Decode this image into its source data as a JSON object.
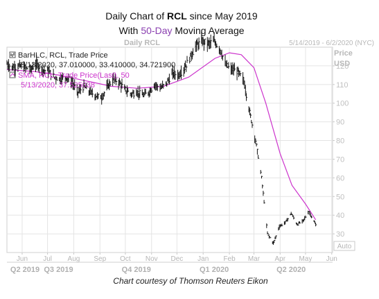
{
  "header": {
    "title_prefix": "Daily Chart of ",
    "title_symbol": "RCL",
    "title_suffix": " since May 2019",
    "subtitle_prefix": "With ",
    "subtitle_accent": "50-Day",
    "subtitle_suffix": " Moving Average",
    "panel_label": "Daily RCL",
    "date_range": "5/14/2019 - 6/2/2020 (NYC)"
  },
  "legend": {
    "bar_line1": "BarHLC, RCL, Trade Price",
    "bar_line2": "5/13/2020, 37.010000, 33.410000, 34.721900",
    "ma_line1": "SMA, RCL, Trade Price(Last),  50",
    "ma_line2": "5/13/2020, 37.525038"
  },
  "axis": {
    "price_label": "Price",
    "unit_label": "USD",
    "auto_label": "Auto"
  },
  "credit": "Chart courtesy of Thomson Reuters Eikon",
  "colors": {
    "bars": "#111111",
    "moving_average": "#cc33cc",
    "grid": "#e4e4e4"
  },
  "chart_data": {
    "type": "line",
    "title": "Daily Chart of RCL since May 2019",
    "subtitle": "With 50-Day Moving Average",
    "ylabel": "Price USD",
    "ylim": [
      20,
      130
    ],
    "y_ticks": [
      30,
      40,
      50,
      60,
      70,
      80,
      90,
      100,
      110,
      120
    ],
    "xlim": [
      "2019-05-14",
      "2020-06-02"
    ],
    "x_ticks": [
      {
        "label": "Jun",
        "date": "2019-06-01"
      },
      {
        "label": "Jul",
        "date": "2019-07-01"
      },
      {
        "label": "Aug",
        "date": "2019-08-01"
      },
      {
        "label": "Sep",
        "date": "2019-09-01"
      },
      {
        "label": "Oct",
        "date": "2019-10-01"
      },
      {
        "label": "Nov",
        "date": "2019-11-01"
      },
      {
        "label": "Dec",
        "date": "2019-12-01"
      },
      {
        "label": "Jan",
        "date": "2020-01-01"
      },
      {
        "label": "Feb",
        "date": "2020-02-01"
      },
      {
        "label": "Mar",
        "date": "2020-03-01"
      },
      {
        "label": "Apr",
        "date": "2020-04-01"
      },
      {
        "label": "May",
        "date": "2020-05-01"
      },
      {
        "label": "Jun",
        "date": "2020-06-01"
      }
    ],
    "quarter_ticks": [
      {
        "label": "Q2 2019",
        "date": "2019-05-14"
      },
      {
        "label": "Q3 2019",
        "date": "2019-07-14"
      },
      {
        "label": "Q4 2019",
        "date": "2019-10-14"
      },
      {
        "label": "Q1 2020",
        "date": "2020-01-14"
      },
      {
        "label": "Q2 2020",
        "date": "2020-04-14"
      }
    ],
    "grid": true,
    "legend_position": "top-left",
    "series": [
      {
        "name": "BarHLC, RCL, Trade Price",
        "kind": "ohlc_approx",
        "points": [
          {
            "x": "2019-05-14",
            "y": 121
          },
          {
            "x": "2019-05-21",
            "y": 119
          },
          {
            "x": "2019-05-28",
            "y": 120
          },
          {
            "x": "2019-06-04",
            "y": 119
          },
          {
            "x": "2019-06-11",
            "y": 118
          },
          {
            "x": "2019-06-18",
            "y": 121
          },
          {
            "x": "2019-06-25",
            "y": 118
          },
          {
            "x": "2019-07-02",
            "y": 117
          },
          {
            "x": "2019-07-09",
            "y": 114
          },
          {
            "x": "2019-07-16",
            "y": 113
          },
          {
            "x": "2019-07-23",
            "y": 114
          },
          {
            "x": "2019-07-30",
            "y": 111
          },
          {
            "x": "2019-08-06",
            "y": 106
          },
          {
            "x": "2019-08-13",
            "y": 109
          },
          {
            "x": "2019-08-20",
            "y": 106
          },
          {
            "x": "2019-08-27",
            "y": 104
          },
          {
            "x": "2019-09-03",
            "y": 103
          },
          {
            "x": "2019-09-10",
            "y": 109
          },
          {
            "x": "2019-09-17",
            "y": 113
          },
          {
            "x": "2019-09-24",
            "y": 111
          },
          {
            "x": "2019-10-01",
            "y": 107
          },
          {
            "x": "2019-10-08",
            "y": 105
          },
          {
            "x": "2019-10-15",
            "y": 106
          },
          {
            "x": "2019-10-22",
            "y": 104
          },
          {
            "x": "2019-10-29",
            "y": 106
          },
          {
            "x": "2019-11-05",
            "y": 110
          },
          {
            "x": "2019-11-12",
            "y": 108
          },
          {
            "x": "2019-11-19",
            "y": 111
          },
          {
            "x": "2019-11-26",
            "y": 116
          },
          {
            "x": "2019-12-03",
            "y": 115
          },
          {
            "x": "2019-12-10",
            "y": 119
          },
          {
            "x": "2019-12-17",
            "y": 125
          },
          {
            "x": "2019-12-24",
            "y": 131
          },
          {
            "x": "2019-12-31",
            "y": 133
          },
          {
            "x": "2020-01-07",
            "y": 132
          },
          {
            "x": "2020-01-14",
            "y": 133
          },
          {
            "x": "2020-01-21",
            "y": 129
          },
          {
            "x": "2020-01-28",
            "y": 120
          },
          {
            "x": "2020-02-04",
            "y": 118
          },
          {
            "x": "2020-02-11",
            "y": 117
          },
          {
            "x": "2020-02-18",
            "y": 112
          },
          {
            "x": "2020-02-25",
            "y": 95
          },
          {
            "x": "2020-03-03",
            "y": 80
          },
          {
            "x": "2020-03-10",
            "y": 60
          },
          {
            "x": "2020-03-17",
            "y": 30
          },
          {
            "x": "2020-03-24",
            "y": 25
          },
          {
            "x": "2020-03-31",
            "y": 34
          },
          {
            "x": "2020-04-07",
            "y": 36
          },
          {
            "x": "2020-04-14",
            "y": 41
          },
          {
            "x": "2020-04-21",
            "y": 35
          },
          {
            "x": "2020-04-28",
            "y": 37
          },
          {
            "x": "2020-05-05",
            "y": 42
          },
          {
            "x": "2020-05-13",
            "y": 34.72
          }
        ]
      },
      {
        "name": "SMA, RCL, Trade Price(Last),  50",
        "points": [
          {
            "x": "2019-05-14",
            "y": 118
          },
          {
            "x": "2019-06-15",
            "y": 117
          },
          {
            "x": "2019-07-15",
            "y": 115
          },
          {
            "x": "2019-08-15",
            "y": 112
          },
          {
            "x": "2019-09-15",
            "y": 109
          },
          {
            "x": "2019-10-15",
            "y": 108
          },
          {
            "x": "2019-11-15",
            "y": 109
          },
          {
            "x": "2019-12-15",
            "y": 114
          },
          {
            "x": "2020-01-15",
            "y": 124
          },
          {
            "x": "2020-02-01",
            "y": 127
          },
          {
            "x": "2020-02-15",
            "y": 126
          },
          {
            "x": "2020-03-01",
            "y": 119
          },
          {
            "x": "2020-03-15",
            "y": 100
          },
          {
            "x": "2020-04-01",
            "y": 73
          },
          {
            "x": "2020-04-15",
            "y": 56
          },
          {
            "x": "2020-05-01",
            "y": 46
          },
          {
            "x": "2020-05-13",
            "y": 37.53
          }
        ]
      }
    ]
  }
}
